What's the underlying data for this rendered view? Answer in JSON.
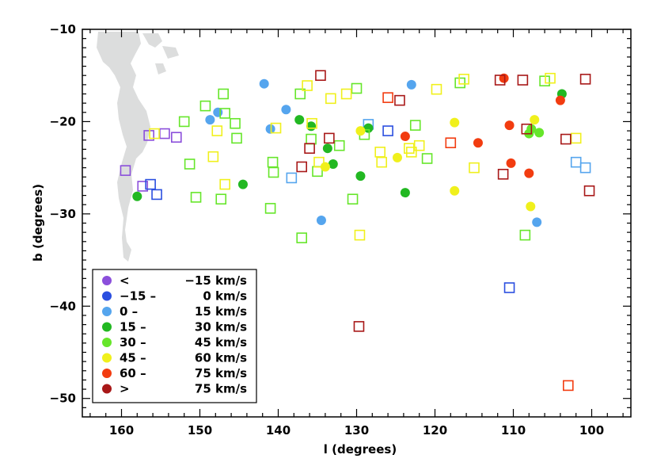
{
  "chart_data": {
    "type": "scatter",
    "title": "",
    "xlabel": "l (degrees)",
    "ylabel": "b (degrees)",
    "xlim": [
      165,
      95
    ],
    "ylim": [
      -52,
      -10
    ],
    "xticks": [
      160,
      150,
      140,
      130,
      120,
      110,
      100
    ],
    "yticks": [
      -10,
      -20,
      -30,
      -40,
      -50
    ],
    "xtick_labels": [
      "160",
      "150",
      "140",
      "130",
      "120",
      "110",
      "100"
    ],
    "ytick_labels": [
      "−10",
      "−20",
      "−30",
      "−40",
      "−50"
    ],
    "marker_types": {
      "filled": "circle",
      "open": "square"
    },
    "velocity_bins": [
      {
        "label": "<   −15 km/s",
        "color": "#8b4fdb"
      },
      {
        "label": "−15 –     0 km/s",
        "color": "#2b4fe0"
      },
      {
        "label": "0 –    15 km/s",
        "color": "#55a5ee"
      },
      {
        "label": "15 –    30 km/s",
        "color": "#22b822"
      },
      {
        "label": "30 –    45 km/s",
        "color": "#66e62a"
      },
      {
        "label": "45 –    60 km/s",
        "color": "#f0f01c"
      },
      {
        "label": "60 –    75 km/s",
        "color": "#f23c10"
      },
      {
        "label": ">    75 km/s",
        "color": "#a81818"
      }
    ],
    "legend": {
      "placement": "bottom-left",
      "entries": [
        {
          "prefix": "<",
          "range": "−15 km/s"
        },
        {
          "prefix": "−15 –",
          "range": "0 km/s"
        },
        {
          "prefix": "0 –",
          "range": "15 km/s"
        },
        {
          "prefix": "15 –",
          "range": "30 km/s"
        },
        {
          "prefix": "30 –",
          "range": "45 km/s"
        },
        {
          "prefix": "45 –",
          "range": "60 km/s"
        },
        {
          "prefix": "60 –",
          "range": "75 km/s"
        },
        {
          "prefix": ">",
          "range": "75 km/s"
        }
      ]
    },
    "background_feature": "light grey cloud region near l=150–160",
    "points": [
      {
        "l": 159.5,
        "b": -25.3,
        "bin": 0,
        "marker": "open"
      },
      {
        "l": 156.5,
        "b": -21.5,
        "bin": 0,
        "marker": "open"
      },
      {
        "l": 154.5,
        "b": -21.3,
        "bin": 0,
        "marker": "open"
      },
      {
        "l": 153.0,
        "b": -21.7,
        "bin": 0,
        "marker": "open"
      },
      {
        "l": 157.3,
        "b": -27.0,
        "bin": 0,
        "marker": "open"
      },
      {
        "l": 156.3,
        "b": -26.8,
        "bin": 1,
        "marker": "open"
      },
      {
        "l": 155.5,
        "b": -27.9,
        "bin": 1,
        "marker": "open"
      },
      {
        "l": 126.0,
        "b": -21.0,
        "bin": 1,
        "marker": "open"
      },
      {
        "l": 110.5,
        "b": -38.0,
        "bin": 1,
        "marker": "open"
      },
      {
        "l": 141.8,
        "b": -15.9,
        "bin": 2,
        "marker": "filled"
      },
      {
        "l": 148.7,
        "b": -19.8,
        "bin": 2,
        "marker": "filled"
      },
      {
        "l": 147.7,
        "b": -19.0,
        "bin": 2,
        "marker": "filled"
      },
      {
        "l": 139.0,
        "b": -18.7,
        "bin": 2,
        "marker": "filled"
      },
      {
        "l": 141.0,
        "b": -20.8,
        "bin": 2,
        "marker": "filled"
      },
      {
        "l": 123.0,
        "b": -16.0,
        "bin": 2,
        "marker": "filled"
      },
      {
        "l": 134.5,
        "b": -30.7,
        "bin": 2,
        "marker": "filled"
      },
      {
        "l": 107.0,
        "b": -30.9,
        "bin": 2,
        "marker": "filled"
      },
      {
        "l": 138.3,
        "b": -26.1,
        "bin": 2,
        "marker": "open"
      },
      {
        "l": 128.5,
        "b": -20.3,
        "bin": 2,
        "marker": "open"
      },
      {
        "l": 102.0,
        "b": -24.4,
        "bin": 2,
        "marker": "open"
      },
      {
        "l": 100.8,
        "b": -25.0,
        "bin": 2,
        "marker": "open"
      },
      {
        "l": 158.0,
        "b": -28.1,
        "bin": 3,
        "marker": "filled"
      },
      {
        "l": 144.5,
        "b": -26.8,
        "bin": 3,
        "marker": "filled"
      },
      {
        "l": 137.3,
        "b": -19.8,
        "bin": 3,
        "marker": "filled"
      },
      {
        "l": 135.8,
        "b": -20.5,
        "bin": 3,
        "marker": "filled"
      },
      {
        "l": 133.7,
        "b": -22.9,
        "bin": 3,
        "marker": "filled"
      },
      {
        "l": 133.0,
        "b": -24.6,
        "bin": 3,
        "marker": "filled"
      },
      {
        "l": 129.5,
        "b": -25.9,
        "bin": 3,
        "marker": "filled"
      },
      {
        "l": 128.5,
        "b": -20.7,
        "bin": 3,
        "marker": "filled"
      },
      {
        "l": 123.8,
        "b": -27.7,
        "bin": 3,
        "marker": "filled"
      },
      {
        "l": 103.8,
        "b": -17.0,
        "bin": 3,
        "marker": "filled"
      },
      {
        "l": 108.0,
        "b": -21.3,
        "bin": 4,
        "marker": "filled"
      },
      {
        "l": 107.7,
        "b": -20.8,
        "bin": 4,
        "marker": "filled"
      },
      {
        "l": 106.7,
        "b": -21.2,
        "bin": 4,
        "marker": "filled"
      },
      {
        "l": 149.3,
        "b": -18.3,
        "bin": 4,
        "marker": "open"
      },
      {
        "l": 147.0,
        "b": -17.0,
        "bin": 4,
        "marker": "open"
      },
      {
        "l": 146.8,
        "b": -19.1,
        "bin": 4,
        "marker": "open"
      },
      {
        "l": 145.5,
        "b": -20.2,
        "bin": 4,
        "marker": "open"
      },
      {
        "l": 145.3,
        "b": -21.8,
        "bin": 4,
        "marker": "open"
      },
      {
        "l": 152.0,
        "b": -20.0,
        "bin": 4,
        "marker": "open"
      },
      {
        "l": 151.3,
        "b": -24.6,
        "bin": 4,
        "marker": "open"
      },
      {
        "l": 150.5,
        "b": -28.2,
        "bin": 4,
        "marker": "open"
      },
      {
        "l": 147.3,
        "b": -28.4,
        "bin": 4,
        "marker": "open"
      },
      {
        "l": 140.7,
        "b": -24.4,
        "bin": 4,
        "marker": "open"
      },
      {
        "l": 140.6,
        "b": -25.5,
        "bin": 4,
        "marker": "open"
      },
      {
        "l": 141.0,
        "b": -29.4,
        "bin": 4,
        "marker": "open"
      },
      {
        "l": 137.2,
        "b": -17.0,
        "bin": 4,
        "marker": "open"
      },
      {
        "l": 135.8,
        "b": -21.9,
        "bin": 4,
        "marker": "open"
      },
      {
        "l": 135.0,
        "b": -25.4,
        "bin": 4,
        "marker": "open"
      },
      {
        "l": 137.0,
        "b": -32.6,
        "bin": 4,
        "marker": "open"
      },
      {
        "l": 132.2,
        "b": -22.6,
        "bin": 4,
        "marker": "open"
      },
      {
        "l": 130.0,
        "b": -16.4,
        "bin": 4,
        "marker": "open"
      },
      {
        "l": 130.5,
        "b": -28.4,
        "bin": 4,
        "marker": "open"
      },
      {
        "l": 129.0,
        "b": -21.4,
        "bin": 4,
        "marker": "open"
      },
      {
        "l": 122.5,
        "b": -20.4,
        "bin": 4,
        "marker": "open"
      },
      {
        "l": 121.0,
        "b": -24.0,
        "bin": 4,
        "marker": "open"
      },
      {
        "l": 116.8,
        "b": -15.8,
        "bin": 4,
        "marker": "open"
      },
      {
        "l": 106.0,
        "b": -15.6,
        "bin": 4,
        "marker": "open"
      },
      {
        "l": 108.5,
        "b": -32.3,
        "bin": 4,
        "marker": "open"
      },
      {
        "l": 129.5,
        "b": -21.0,
        "bin": 5,
        "marker": "filled"
      },
      {
        "l": 134.0,
        "b": -24.9,
        "bin": 5,
        "marker": "filled"
      },
      {
        "l": 124.8,
        "b": -23.9,
        "bin": 5,
        "marker": "filled"
      },
      {
        "l": 117.5,
        "b": -20.1,
        "bin": 5,
        "marker": "filled"
      },
      {
        "l": 117.5,
        "b": -27.5,
        "bin": 5,
        "marker": "filled"
      },
      {
        "l": 107.3,
        "b": -19.8,
        "bin": 5,
        "marker": "filled"
      },
      {
        "l": 107.8,
        "b": -29.2,
        "bin": 5,
        "marker": "filled"
      },
      {
        "l": 155.8,
        "b": -21.3,
        "bin": 5,
        "marker": "open"
      },
      {
        "l": 148.3,
        "b": -23.8,
        "bin": 5,
        "marker": "open"
      },
      {
        "l": 147.8,
        "b": -21.0,
        "bin": 5,
        "marker": "open"
      },
      {
        "l": 146.8,
        "b": -26.8,
        "bin": 5,
        "marker": "open"
      },
      {
        "l": 140.3,
        "b": -20.7,
        "bin": 5,
        "marker": "open"
      },
      {
        "l": 136.3,
        "b": -16.1,
        "bin": 5,
        "marker": "open"
      },
      {
        "l": 135.7,
        "b": -20.2,
        "bin": 5,
        "marker": "open"
      },
      {
        "l": 134.8,
        "b": -24.4,
        "bin": 5,
        "marker": "open"
      },
      {
        "l": 133.3,
        "b": -17.5,
        "bin": 5,
        "marker": "open"
      },
      {
        "l": 131.3,
        "b": -17.0,
        "bin": 5,
        "marker": "open"
      },
      {
        "l": 129.6,
        "b": -32.3,
        "bin": 5,
        "marker": "open"
      },
      {
        "l": 127.0,
        "b": -23.3,
        "bin": 5,
        "marker": "open"
      },
      {
        "l": 126.8,
        "b": -24.4,
        "bin": 5,
        "marker": "open"
      },
      {
        "l": 123.3,
        "b": -22.9,
        "bin": 5,
        "marker": "open"
      },
      {
        "l": 123.0,
        "b": -23.3,
        "bin": 5,
        "marker": "open"
      },
      {
        "l": 122.0,
        "b": -22.6,
        "bin": 5,
        "marker": "open"
      },
      {
        "l": 119.8,
        "b": -16.5,
        "bin": 5,
        "marker": "open"
      },
      {
        "l": 116.3,
        "b": -15.4,
        "bin": 5,
        "marker": "open"
      },
      {
        "l": 115.0,
        "b": -25.0,
        "bin": 5,
        "marker": "open"
      },
      {
        "l": 105.3,
        "b": -15.3,
        "bin": 5,
        "marker": "open"
      },
      {
        "l": 102.0,
        "b": -21.8,
        "bin": 5,
        "marker": "open"
      },
      {
        "l": 123.8,
        "b": -21.6,
        "bin": 6,
        "marker": "filled"
      },
      {
        "l": 114.5,
        "b": -22.3,
        "bin": 6,
        "marker": "filled"
      },
      {
        "l": 111.2,
        "b": -15.3,
        "bin": 6,
        "marker": "filled"
      },
      {
        "l": 110.5,
        "b": -20.4,
        "bin": 6,
        "marker": "filled"
      },
      {
        "l": 110.3,
        "b": -24.5,
        "bin": 6,
        "marker": "filled"
      },
      {
        "l": 108.0,
        "b": -25.6,
        "bin": 6,
        "marker": "filled"
      },
      {
        "l": 104.0,
        "b": -17.7,
        "bin": 6,
        "marker": "filled"
      },
      {
        "l": 126.0,
        "b": -17.4,
        "bin": 6,
        "marker": "open"
      },
      {
        "l": 118.0,
        "b": -22.3,
        "bin": 6,
        "marker": "open"
      },
      {
        "l": 103.0,
        "b": -48.6,
        "bin": 6,
        "marker": "open"
      },
      {
        "l": 134.6,
        "b": -15.0,
        "bin": 7,
        "marker": "open"
      },
      {
        "l": 136.0,
        "b": -22.9,
        "bin": 7,
        "marker": "open"
      },
      {
        "l": 137.0,
        "b": -24.9,
        "bin": 7,
        "marker": "open"
      },
      {
        "l": 133.5,
        "b": -21.8,
        "bin": 7,
        "marker": "open"
      },
      {
        "l": 124.5,
        "b": -17.7,
        "bin": 7,
        "marker": "open"
      },
      {
        "l": 129.7,
        "b": -42.2,
        "bin": 7,
        "marker": "open"
      },
      {
        "l": 111.7,
        "b": -15.5,
        "bin": 7,
        "marker": "open"
      },
      {
        "l": 111.3,
        "b": -25.7,
        "bin": 7,
        "marker": "open"
      },
      {
        "l": 108.8,
        "b": -15.5,
        "bin": 7,
        "marker": "open"
      },
      {
        "l": 108.3,
        "b": -20.8,
        "bin": 7,
        "marker": "open"
      },
      {
        "l": 103.3,
        "b": -21.9,
        "bin": 7,
        "marker": "open"
      },
      {
        "l": 100.8,
        "b": -15.4,
        "bin": 7,
        "marker": "open"
      },
      {
        "l": 100.3,
        "b": -27.5,
        "bin": 7,
        "marker": "open"
      }
    ]
  }
}
